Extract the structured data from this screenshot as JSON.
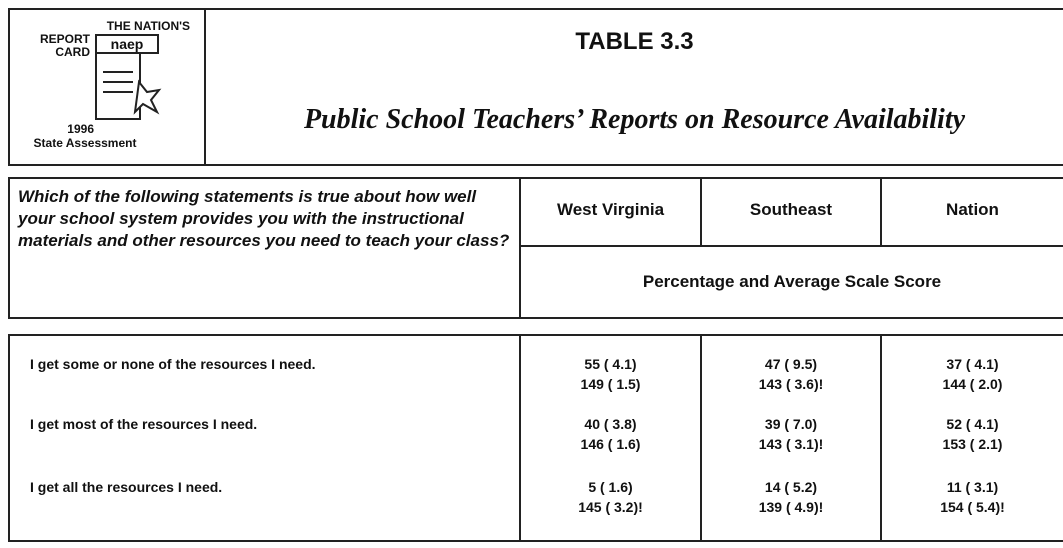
{
  "logo": {
    "line1": "THE NATION'S",
    "line2": "REPORT",
    "line3": "CARD",
    "brand": "naep",
    "year": "1996",
    "assessment": "State Assessment"
  },
  "header": {
    "title": "TABLE 3.3",
    "subtitle": "Public School Teachers’ Reports on Resource Availability"
  },
  "table": {
    "question": "Which of the following statements is true about how well your school system provides you with the instructional materials and other resources you need to teach your class?",
    "columns": [
      "West Virginia",
      "Southeast",
      "Nation"
    ],
    "subheader": "Percentage and Average Scale Score",
    "rows": [
      {
        "label": "I get some or none of the resources I need.",
        "cells": [
          [
            "55 ( 4.1)",
            "149 ( 1.5)"
          ],
          [
            "47 ( 9.5)",
            "143 ( 3.6)!"
          ],
          [
            "37 ( 4.1)",
            "144 ( 2.0)"
          ]
        ]
      },
      {
        "label": "I get most of the resources I need.",
        "cells": [
          [
            "40 ( 3.8)",
            "146 ( 1.6)"
          ],
          [
            "39 ( 7.0)",
            "143 ( 3.1)!"
          ],
          [
            "52 ( 4.1)",
            "153 ( 2.1)"
          ]
        ]
      },
      {
        "label": "I get all the resources I need.",
        "cells": [
          [
            "5 ( 1.6)",
            "145 ( 3.2)!"
          ],
          [
            "14 ( 5.2)",
            "139 ( 4.9)!"
          ],
          [
            "11 ( 3.1)",
            "154 ( 5.4)!"
          ]
        ]
      }
    ]
  }
}
